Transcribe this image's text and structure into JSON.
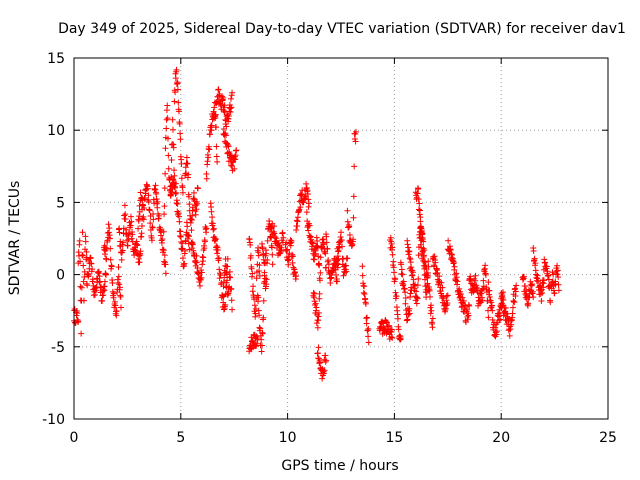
{
  "chart_data": {
    "type": "scatter",
    "title": "Day 349 of 2025, Sidereal Day-to-day VTEC variation (SDTVAR) for receiver dav1",
    "xlabel": "GPS time / hours",
    "ylabel": "SDTVAR / TECUs",
    "xlim": [
      0,
      25
    ],
    "ylim": [
      -10,
      15
    ],
    "xticks": [
      0,
      5,
      10,
      15,
      20,
      25
    ],
    "yticks": [
      -10,
      -5,
      0,
      5,
      10,
      15
    ],
    "x_tick_labels": [
      "0",
      "5",
      "10",
      "15",
      "20",
      "25"
    ],
    "y_tick_labels": [
      "-10",
      "-5",
      "0",
      "5",
      "10",
      "15"
    ],
    "grid": true,
    "marker": "+",
    "series_color": "#ff0000",
    "series": [
      {
        "name": "SDTVAR",
        "segments": [
          {
            "x0": 0.0,
            "x1": 0.2,
            "y": [
              -2.8,
              -3.0
            ]
          },
          {
            "x0": 0.2,
            "x1": 0.6,
            "y": [
              0.5,
              2.8,
              -3.8,
              2.5,
              -1.5,
              2.2,
              0.8
            ]
          },
          {
            "x0": 0.6,
            "x1": 1.5,
            "y": [
              -0.5,
              1.2,
              -1.5,
              0.5,
              -2.0,
              0.2
            ]
          },
          {
            "x0": 1.4,
            "x1": 2.2,
            "y": [
              2.0,
              1.5,
              3.5,
              0.5,
              -1.5,
              -2.8,
              0.2,
              -2.3
            ]
          },
          {
            "x0": 2.1,
            "x1": 3.2,
            "y": [
              3.0,
              1.0,
              4.5,
              2.2,
              3.8,
              1.5,
              2.0,
              0.8,
              3.5
            ]
          },
          {
            "x0": 3.0,
            "x1": 4.3,
            "y": [
              3.5,
              5.5,
              4.2,
              6.5,
              4.8,
              2.5,
              6.0,
              5.0,
              3.0,
              1.8,
              0.5
            ]
          },
          {
            "x0": 4.2,
            "x1": 4.7,
            "y": [
              3.0,
              8.5,
              12.0,
              6.5,
              5.5,
              10.5,
              7.0
            ]
          },
          {
            "x0": 4.7,
            "x1": 5.1,
            "y": [
              12.0,
              14.0,
              13.5,
              11.5,
              9.5,
              7.5,
              5.5
            ]
          },
          {
            "x0": 4.5,
            "x1": 5.4,
            "y": [
              5.5,
              6.5,
              6.0,
              4.0,
              2.5,
              0.5,
              3.5,
              2.0
            ]
          },
          {
            "x0": 5.2,
            "x1": 5.8,
            "y": [
              7.0,
              8.0,
              5.0,
              3.0,
              5.5,
              4.0,
              6.0
            ]
          },
          {
            "x0": 5.5,
            "x1": 6.2,
            "y": [
              2.0,
              1.5,
              0.5,
              -0.5,
              1.8,
              3.5
            ]
          },
          {
            "x0": 6.2,
            "x1": 6.7,
            "y": [
              6.5,
              8.5,
              10.0,
              11.0,
              11.5,
              8.0
            ]
          },
          {
            "x0": 6.6,
            "x1": 7.4,
            "y": [
              11.0,
              12.5,
              12.0,
              11.8,
              10.5,
              11.0,
              12.2
            ]
          },
          {
            "x0": 7.0,
            "x1": 7.6,
            "y": [
              10.0,
              9.0,
              8.0,
              7.5,
              8.2
            ]
          },
          {
            "x0": 6.4,
            "x1": 7.2,
            "y": [
              4.5,
              3.0,
              2.0,
              0.5,
              -1.5,
              -2.5,
              1.0
            ]
          },
          {
            "x0": 7.0,
            "x1": 7.4,
            "y": [
              -0.5,
              1.0,
              -1.5,
              0.2,
              -2.0
            ]
          },
          {
            "x0": 8.2,
            "x1": 8.6,
            "y": [
              -5.0,
              -4.8,
              -4.5,
              -4.7,
              -4.3
            ]
          },
          {
            "x0": 8.2,
            "x1": 8.7,
            "y": [
              2.5,
              1.0,
              -1.5,
              -3.0,
              2.0,
              0.0
            ]
          },
          {
            "x0": 8.6,
            "x1": 9.0,
            "y": [
              -1.0,
              -3.0,
              -4.5,
              -5.0,
              -2.5,
              0.5,
              1.5
            ]
          },
          {
            "x0": 8.8,
            "x1": 9.3,
            "y": [
              2.5,
              0.5,
              -1.0,
              3.5,
              2.8,
              1.2
            ]
          },
          {
            "x0": 9.2,
            "x1": 9.8,
            "y": [
              3.2,
              3.0,
              2.0,
              1.5,
              2.8
            ]
          },
          {
            "x0": 9.9,
            "x1": 10.4,
            "y": [
              2.0,
              1.0,
              2.5,
              0.5,
              0.0
            ]
          },
          {
            "x0": 10.4,
            "x1": 11.0,
            "y": [
              2.8,
              4.5,
              5.5,
              5.2,
              6.0,
              4.8
            ]
          },
          {
            "x0": 10.9,
            "x1": 11.5,
            "y": [
              4.0,
              3.0,
              2.2,
              1.0,
              2.5,
              0.0
            ]
          },
          {
            "x0": 11.2,
            "x1": 11.8,
            "y": [
              -1.0,
              -2.5,
              -3.5,
              1.5,
              2.5,
              0.5
            ]
          },
          {
            "x0": 11.4,
            "x1": 11.8,
            "y": [
              -5.0,
              -6.0,
              -7.0,
              -6.5,
              -5.5
            ]
          },
          {
            "x0": 11.8,
            "x1": 12.4,
            "y": [
              3.0,
              1.0,
              -0.5,
              0.0,
              0.8,
              -0.3,
              1.5
            ]
          },
          {
            "x0": 12.2,
            "x1": 12.8,
            "y": [
              0.5,
              1.5,
              2.5,
              -0.2,
              1.0
            ]
          },
          {
            "x0": 12.8,
            "x1": 13.2,
            "y": [
              4.5,
              3.0,
              2.5,
              1.5,
              2.0,
              9.8,
              9.5
            ]
          },
          {
            "x0": 13.5,
            "x1": 13.8,
            "y": [
              0.5,
              -1.5,
              -3.0,
              -4.2
            ]
          },
          {
            "x0": 14.3,
            "x1": 14.9,
            "y": [
              -3.5,
              -3.8,
              -3.5,
              -4.0,
              -4.2
            ]
          },
          {
            "x0": 14.8,
            "x1": 15.3,
            "y": [
              2.5,
              1.5,
              0.0,
              -2.0,
              -4.0,
              -4.8
            ]
          },
          {
            "x0": 15.3,
            "x1": 15.8,
            "y": [
              0.5,
              -0.5,
              -1.5,
              -3.0,
              -2.5,
              -1.0
            ]
          },
          {
            "x0": 15.6,
            "x1": 16.3,
            "y": [
              2.5,
              1.0,
              0.0,
              -1.0,
              -2.0,
              3.0,
              1.5
            ]
          },
          {
            "x0": 16.0,
            "x1": 16.6,
            "y": [
              5.5,
              6.0,
              4.0,
              2.5,
              0.0,
              -1.5,
              1.0
            ]
          },
          {
            "x0": 16.2,
            "x1": 16.8,
            "y": [
              3.5,
              2.5,
              1.0,
              -0.5,
              -2.0,
              -3.5
            ]
          },
          {
            "x0": 16.8,
            "x1": 17.5,
            "y": [
              1.5,
              0.5,
              -0.5,
              -1.0,
              -2.5,
              -1.5
            ]
          },
          {
            "x0": 17.5,
            "x1": 18.5,
            "y": [
              2.0,
              1.5,
              0.5,
              -0.5,
              -1.5,
              -2.0,
              -3.0,
              -2.5
            ]
          },
          {
            "x0": 18.5,
            "x1": 19.4,
            "y": [
              0.0,
              -1.0,
              -0.5,
              -2.0,
              -1.5,
              0.5,
              -2.5
            ]
          },
          {
            "x0": 19.4,
            "x1": 20.1,
            "y": [
              -1.0,
              -2.0,
              -3.5,
              -4.0,
              -3.0,
              -2.5,
              -1.5
            ]
          },
          {
            "x0": 20.0,
            "x1": 20.7,
            "y": [
              -1.5,
              -2.5,
              -3.0,
              -4.0,
              -2.0,
              -1.0
            ]
          },
          {
            "x0": 21.0,
            "x1": 21.5,
            "y": [
              0.0,
              -1.0,
              -2.0,
              -0.5,
              -1.5
            ]
          },
          {
            "x0": 21.5,
            "x1": 22.0,
            "y": [
              1.5,
              0.5,
              -0.5,
              -1.0,
              -1.5,
              0.0
            ]
          },
          {
            "x0": 22.0,
            "x1": 22.7,
            "y": [
              0.5,
              1.0,
              -0.5,
              -1.5,
              0.0,
              -1.0,
              0.5,
              -0.8
            ]
          }
        ]
      }
    ]
  }
}
